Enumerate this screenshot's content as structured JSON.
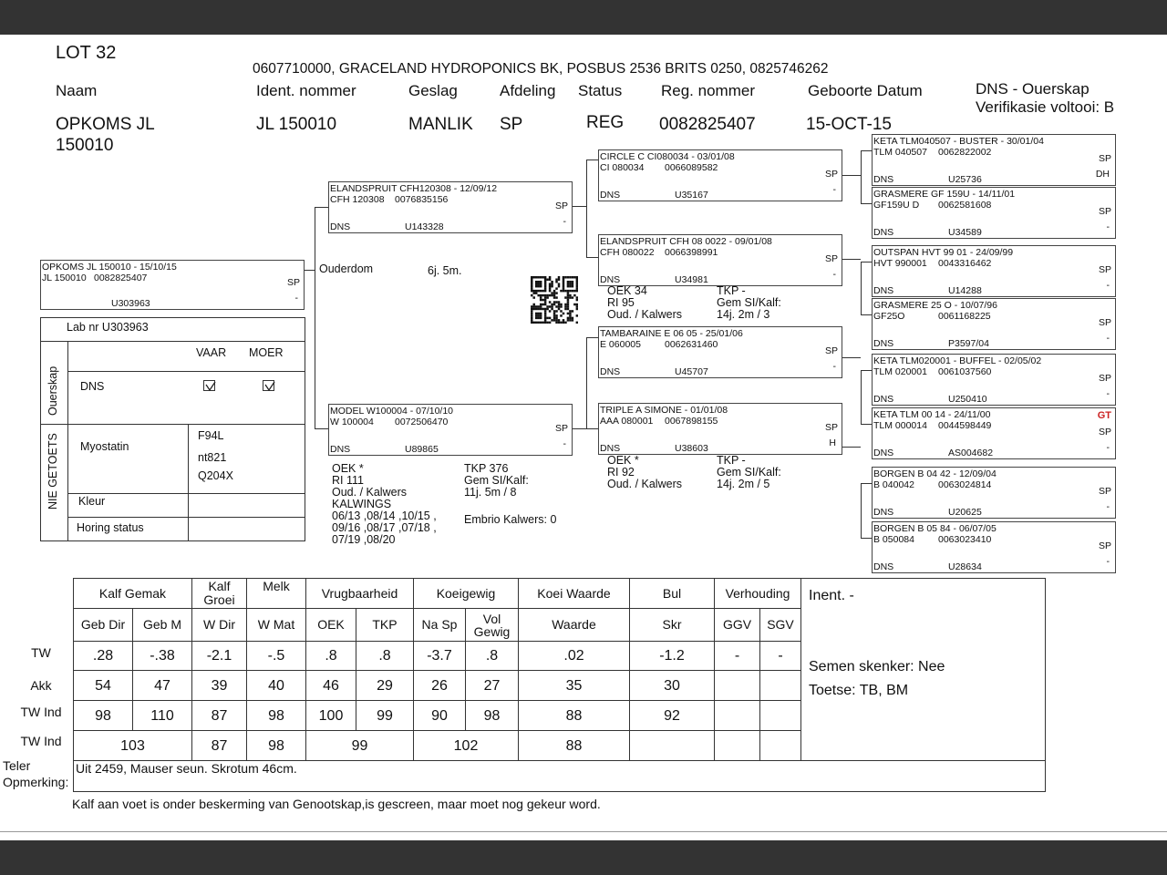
{
  "header": {
    "lot": "LOT 32",
    "owner": "0607710000, GRACELAND HYDROPONICS BK, POSBUS 2536 BRITS 0250, 0825746262",
    "labels": {
      "naam": "Naam",
      "ident": "Ident. nommer",
      "geslag": "Geslag",
      "afdeling": "Afdeling",
      "status": "Status",
      "reg": "Reg. nommer",
      "geboorte": "Geboorte Datum"
    },
    "values": {
      "naam_1": "OPKOMS JL",
      "naam_2": "150010",
      "ident": "JL  150010",
      "geslag": "MANLIK",
      "afdeling": "SP",
      "status": "REG",
      "reg": "0082825407",
      "geboorte": "15-OCT-15"
    },
    "dns_title": "DNS - Ouerskap",
    "dns_verification": "Verifikasie voltooi:  B"
  },
  "pedigree": {
    "subject": {
      "title": "OPKOMS JL  150010 - 15/10/15",
      "ident": "JL  150010",
      "reg": "0082825407",
      "dns": "",
      "code": "U303963",
      "breed": "SP",
      "flag": "-"
    },
    "sire": {
      "title": "ELANDSPRUIT CFH120308 - 12/09/12",
      "ident": "CFH 120308",
      "reg": "0076835156",
      "dns": "DNS",
      "code": "U143328",
      "breed": "SP",
      "flag": "-"
    },
    "dam": {
      "title": "MODEL W100004 - 07/10/10",
      "ident": "W  100004",
      "reg": "0072506470",
      "dns": "DNS",
      "code": "U89865",
      "breed": "SP",
      "flag": "-"
    },
    "ss": {
      "title": "CIRCLE C CI080034 - 03/01/08",
      "ident": "CI  080034",
      "reg": "0066089582",
      "dns": "DNS",
      "code": "U35167",
      "breed": "SP",
      "flag": "-"
    },
    "sd": {
      "title": "ELANDSPRUIT CFH 08 0022 - 09/01/08",
      "ident": "CFH 080022",
      "reg": "0066398991",
      "dns": "DNS",
      "code": "U34981",
      "breed": "SP",
      "flag": "-"
    },
    "ds": {
      "title": "TAMBARAINE E 06 05 - 25/01/06",
      "ident": "E  060005",
      "reg": "0062631460",
      "dns": "DNS",
      "code": "U45707",
      "breed": "SP",
      "flag": "-"
    },
    "dd": {
      "title": "TRIPLE A SIMONE - 01/01/08",
      "ident": "AAA 080001",
      "reg": "0067898155",
      "dns": "DNS",
      "code": "U38603",
      "breed": "SP",
      "flag": "H"
    },
    "sss": {
      "title": "KETA TLM040507 - BUSTER - 30/01/04",
      "ident": "TLM 040507",
      "reg": "0062822002",
      "dns": "DNS",
      "code": "U25736",
      "breed": "SP",
      "flag": "DH"
    },
    "ssd": {
      "title": "GRASMERE GF 159U - 14/11/01",
      "ident": "GF159U       D",
      "reg": "0062581608",
      "dns": "DNS",
      "code": "U34589",
      "breed": "SP",
      "flag": "-"
    },
    "sds": {
      "title": "OUTSPAN HVT 99 01 - 24/09/99",
      "ident": "HVT 990001",
      "reg": "0043316462",
      "dns": "DNS",
      "code": "U14288",
      "breed": "SP",
      "flag": "-"
    },
    "sdd": {
      "title": "GRASMERE 25 O - 10/07/96",
      "ident": "GF25O",
      "reg": "0061168225",
      "dns": "DNS",
      "code": "P3597/04",
      "breed": "SP",
      "flag": "-"
    },
    "dss": {
      "title": "KETA TLM020001 - BUFFEL - 02/05/02",
      "ident": "TLM 020001",
      "reg": "0061037560",
      "dns": "DNS",
      "code": "U250410",
      "breed": "SP",
      "flag": "-"
    },
    "dsd": {
      "title": "KETA TLM 00 14 - 24/11/00",
      "ident": "TLM 000014",
      "reg": "0044598449",
      "dns": "DNS",
      "code": "AS004682",
      "breed": "SP",
      "flag": "-",
      "logo": "GT"
    },
    "dds": {
      "title": "BORGEN B 04 42 - 12/09/04",
      "ident": "B  040042",
      "reg": "0063024814",
      "dns": "DNS",
      "code": "U20625",
      "breed": "SP",
      "flag": "-"
    },
    "ddd": {
      "title": "BORGEN B 05 84 - 06/07/05",
      "ident": "B  050084",
      "reg": "0063023410",
      "dns": "DNS",
      "code": "U28634",
      "breed": "SP",
      "flag": "-"
    }
  },
  "ouderdom": {
    "label": "Ouderdom",
    "value": "6j. 5m."
  },
  "stats": {
    "sd": {
      "l1": "OEK      34",
      "l2": "RI      95",
      "l3": "Oud. / Kalwers",
      "r1": "TKP       -",
      "r2": "Gem SI/Kalf:",
      "r3": "14j. 2m  / 3"
    },
    "dd": {
      "l1": "OEK       *",
      "l2": "RI          92",
      "l3": "Oud. / Kalwers",
      "r1": "TKP       -",
      "r2": "Gem SI/Kalf:",
      "r3": "14j. 2m  / 5"
    },
    "dam": {
      "l1": "OEK       *",
      "l2": "RI   111",
      "l3": "Oud. / Kalwers",
      "l4": "KALWINGS",
      "l5": "06/13 ,08/14 ,10/15 ,",
      "l6": "09/16 ,08/17 ,07/18 ,",
      "l7": "07/19 ,08/20",
      "r1": "TKP       376",
      "r2": "Gem SI/Kalf:",
      "r3": "11j. 5m  / 8",
      "r4": "Embrio Kalwers: 0"
    }
  },
  "lab": {
    "lab_nr": "Lab nr  U303963",
    "ouerskap": "Ouerskap",
    "vaar": "VAAR",
    "moer": "MOER",
    "dns": "DNS",
    "vaar_checked": true,
    "moer_checked": true,
    "nie_getoets": "NIE GETOETS",
    "myostatin": "Myostatin",
    "myo_values": [
      "F94L",
      "nt821",
      "Q204X"
    ],
    "kleur": "Kleur",
    "horing": "Horing status"
  },
  "ebv": {
    "groups": [
      "Kalf Gemak",
      "Kalf Groei",
      "Melk",
      "Vrugbaarheid",
      "Koeigewig",
      "Koei Waarde",
      "Bul",
      "Verhouding"
    ],
    "columns": [
      "Geb Dir",
      "Geb M",
      "W Dir",
      "W Mat",
      "OEK",
      "TKP",
      "Na Sp",
      "Vol Gewig",
      "Waarde",
      "Skr",
      "GGV",
      "SGV"
    ],
    "row_labels": [
      "TW",
      "Akk",
      "TW Ind",
      "TW Ind"
    ],
    "tw": [
      ".28",
      "-.38",
      "-2.1",
      "-.5",
      ".8",
      ".8",
      "-3.7",
      ".8",
      ".02",
      "-1.2",
      "-",
      "-"
    ],
    "akk": [
      "54",
      "47",
      "39",
      "40",
      "46",
      "29",
      "26",
      "27",
      "35",
      "30",
      "",
      ""
    ],
    "tw_ind": [
      "98",
      "110",
      "87",
      "98",
      "100",
      "99",
      "90",
      "98",
      "88",
      "92",
      "",
      ""
    ],
    "tw_ind_group": [
      "103",
      "87",
      "98",
      "99",
      "102",
      "88",
      "",
      "",
      ""
    ],
    "side": {
      "inent": "Inent. -",
      "semen": "Semen skenker: Nee",
      "toetse": "Toetse: TB, BM"
    },
    "remark_label_1": "Teler",
    "remark_label_2": "Opmerking:",
    "remark": "Uit 2459, Mauser seun. Skrotum 46cm."
  },
  "footer_note": "Kalf aan voet  is onder beskerming van Genootskap,is gescreen, maar moet nog gekeur word."
}
